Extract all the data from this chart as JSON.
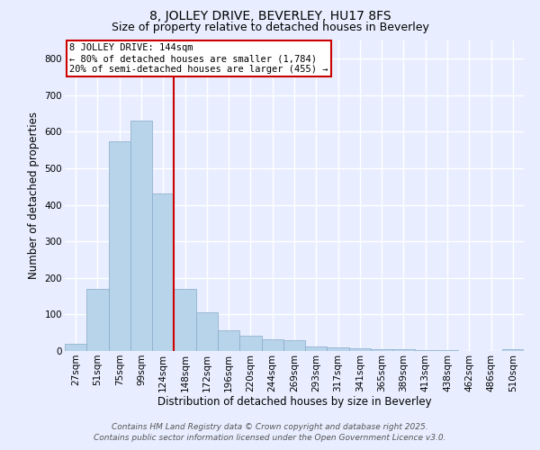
{
  "title": "8, JOLLEY DRIVE, BEVERLEY, HU17 8FS",
  "subtitle": "Size of property relative to detached houses in Beverley",
  "xlabel": "Distribution of detached houses by size in Beverley",
  "ylabel": "Number of detached properties",
  "categories": [
    "27sqm",
    "51sqm",
    "75sqm",
    "99sqm",
    "124sqm",
    "148sqm",
    "172sqm",
    "196sqm",
    "220sqm",
    "244sqm",
    "269sqm",
    "293sqm",
    "317sqm",
    "341sqm",
    "365sqm",
    "389sqm",
    "413sqm",
    "438sqm",
    "462sqm",
    "486sqm",
    "510sqm"
  ],
  "values": [
    20,
    170,
    575,
    630,
    430,
    170,
    105,
    57,
    42,
    33,
    30,
    13,
    10,
    8,
    6,
    4,
    3,
    2,
    1,
    1,
    5
  ],
  "bar_color": "#b8d4ea",
  "bar_edgecolor": "#88aac8",
  "bar_width": 1.0,
  "redline_index": 5,
  "annotation_line1": "8 JOLLEY DRIVE: 144sqm",
  "annotation_line2": "← 80% of detached houses are smaller (1,784)",
  "annotation_line3": "20% of semi-detached houses are larger (455) →",
  "annotation_box_facecolor": "#ffffff",
  "annotation_box_edgecolor": "#cc0000",
  "redline_color": "#cc0000",
  "ylim": [
    0,
    850
  ],
  "yticks": [
    0,
    100,
    200,
    300,
    400,
    500,
    600,
    700,
    800
  ],
  "background_color": "#e8eeff",
  "plot_bg_color": "#e8eeff",
  "footer_line1": "Contains HM Land Registry data © Crown copyright and database right 2025.",
  "footer_line2": "Contains public sector information licensed under the Open Government Licence v3.0.",
  "title_fontsize": 10,
  "subtitle_fontsize": 9,
  "xlabel_fontsize": 8.5,
  "ylabel_fontsize": 8.5,
  "tick_fontsize": 7.5,
  "footer_fontsize": 6.5,
  "annotation_fontsize": 7.5,
  "grid_color": "#ffffff",
  "grid_linewidth": 1.0
}
